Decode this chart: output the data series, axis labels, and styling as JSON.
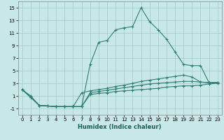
{
  "xlabel": "Humidex (Indice chaleur)",
  "bg_color": "#c8e8e8",
  "grid_color": "#a0c8c8",
  "line_color": "#2e7d72",
  "xlim": [
    -0.5,
    23.5
  ],
  "ylim": [
    -2,
    16
  ],
  "xticks": [
    0,
    1,
    2,
    3,
    4,
    5,
    6,
    7,
    8,
    9,
    10,
    11,
    12,
    13,
    14,
    15,
    16,
    17,
    18,
    19,
    20,
    21,
    22,
    23
  ],
  "yticks": [
    -1,
    1,
    3,
    5,
    7,
    9,
    11,
    13,
    15
  ],
  "series1_x": [
    0,
    1,
    2,
    3,
    4,
    5,
    6,
    7,
    8,
    9,
    10,
    11,
    12,
    13,
    14,
    15,
    16,
    17,
    18,
    19,
    20,
    21,
    22,
    23
  ],
  "series1_y": [
    2,
    1,
    -0.5,
    -0.6,
    -0.7,
    -0.7,
    -0.7,
    -0.7,
    6.0,
    9.5,
    9.8,
    11.5,
    11.8,
    12.0,
    15.0,
    12.8,
    11.5,
    10.0,
    8.0,
    6.0,
    5.8,
    5.8,
    3.1,
    3.1
  ],
  "series2_x": [
    0,
    1,
    2,
    3,
    4,
    5,
    6,
    7,
    8,
    9,
    10,
    11,
    12,
    13,
    14,
    15,
    16,
    17,
    18,
    19,
    20,
    21,
    22,
    23
  ],
  "series2_y": [
    2,
    0.8,
    -0.5,
    -0.6,
    -0.7,
    -0.7,
    -0.7,
    1.5,
    1.8,
    2.0,
    2.2,
    2.5,
    2.7,
    3.0,
    3.3,
    3.5,
    3.7,
    3.9,
    4.1,
    4.3,
    4.0,
    3.2,
    3.1,
    3.1
  ],
  "series3_x": [
    0,
    1,
    2,
    3,
    4,
    5,
    6,
    7,
    8,
    9,
    10,
    11,
    12,
    13,
    14,
    15,
    16,
    17,
    18,
    19,
    20,
    21,
    22,
    23
  ],
  "series3_y": [
    2,
    0.8,
    -0.5,
    -0.6,
    -0.7,
    -0.7,
    -0.7,
    -0.7,
    1.5,
    1.7,
    1.9,
    2.1,
    2.3,
    2.5,
    2.7,
    2.9,
    3.0,
    3.1,
    3.2,
    3.3,
    3.3,
    3.2,
    3.1,
    3.1
  ],
  "series4_x": [
    0,
    1,
    2,
    3,
    4,
    5,
    6,
    7,
    8,
    9,
    10,
    11,
    12,
    13,
    14,
    15,
    16,
    17,
    18,
    19,
    20,
    21,
    22,
    23
  ],
  "series4_y": [
    2,
    0.8,
    -0.5,
    -0.6,
    -0.7,
    -0.7,
    -0.7,
    -0.7,
    1.2,
    1.4,
    1.5,
    1.7,
    1.8,
    1.9,
    2.0,
    2.1,
    2.2,
    2.4,
    2.5,
    2.6,
    2.6,
    2.7,
    2.9,
    3.0
  ]
}
